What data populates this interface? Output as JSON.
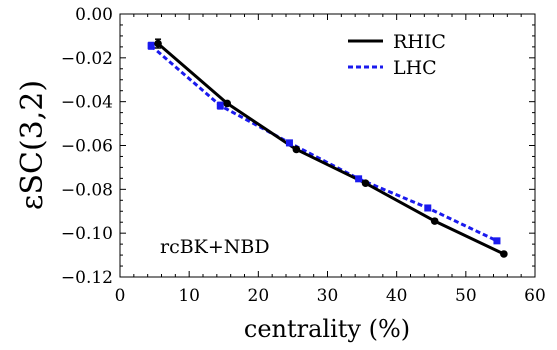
{
  "chart_data": {
    "type": "line",
    "xlabel": "centrality (%)",
    "ylabel": "εSC(3,2)",
    "xlim": [
      0,
      60
    ],
    "ylim": [
      -0.12,
      0.0
    ],
    "xticks": [
      "0",
      "10",
      "20",
      "30",
      "40",
      "50",
      "60"
    ],
    "yticks": [
      "0.00",
      "−0.02",
      "−0.04",
      "−0.06",
      "−0.08",
      "−0.10",
      "−0.12"
    ],
    "annotation": "rcBK+NBD",
    "legend_position": "top-right",
    "grid": false,
    "series": [
      {
        "name": "RHIC",
        "color": "#000000",
        "line_style": "solid",
        "x": [
          5.5,
          15.5,
          25.5,
          35.5,
          45.5,
          55.5
        ],
        "values": [
          -0.0135,
          -0.0408,
          -0.0618,
          -0.0772,
          -0.0945,
          -0.1095
        ],
        "errors": [
          0.002,
          0.0008,
          0.0008,
          0.0008,
          0.0008,
          0.0005
        ]
      },
      {
        "name": "LHC",
        "color": "#1a1aee",
        "line_style": "dashed",
        "x": [
          4.5,
          14.5,
          24.5,
          34.5,
          44.5,
          54.5
        ],
        "values": [
          -0.0145,
          -0.0418,
          -0.0588,
          -0.0752,
          -0.0885,
          -0.1035
        ],
        "errors": [
          0.0015,
          0.0015,
          0.0012,
          0.0008,
          0.0012,
          0.001
        ]
      }
    ]
  }
}
